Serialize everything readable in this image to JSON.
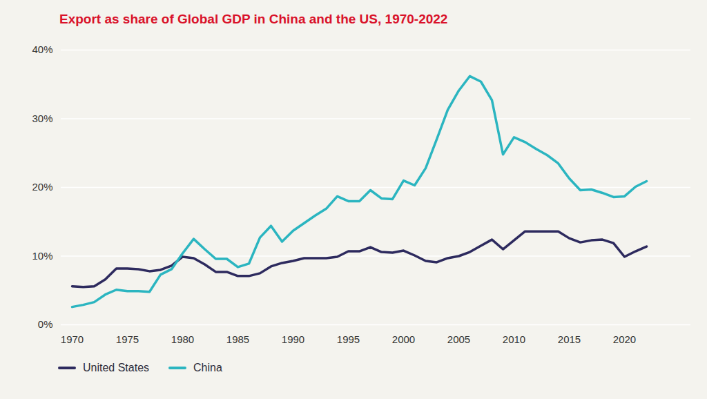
{
  "chart_data": {
    "type": "line",
    "title": "Export as share of Global GDP in China and the US, 1970-2022",
    "x": [
      1970,
      1971,
      1972,
      1973,
      1974,
      1975,
      1976,
      1977,
      1978,
      1979,
      1980,
      1981,
      1982,
      1983,
      1984,
      1985,
      1986,
      1987,
      1988,
      1989,
      1990,
      1991,
      1992,
      1993,
      1994,
      1995,
      1996,
      1997,
      1998,
      1999,
      2000,
      2001,
      2002,
      2003,
      2004,
      2005,
      2006,
      2007,
      2008,
      2009,
      2010,
      2011,
      2012,
      2013,
      2014,
      2015,
      2016,
      2017,
      2018,
      2019,
      2020,
      2021,
      2022
    ],
    "series": [
      {
        "name": "United States",
        "color": "#2d2a5e",
        "values": [
          5.6,
          5.5,
          5.6,
          6.6,
          8.2,
          8.2,
          8.1,
          7.8,
          8.0,
          8.6,
          9.9,
          9.7,
          8.8,
          7.7,
          7.7,
          7.1,
          7.1,
          7.5,
          8.5,
          9.0,
          9.3,
          9.7,
          9.7,
          9.7,
          9.9,
          10.7,
          10.7,
          11.3,
          10.6,
          10.5,
          10.8,
          10.1,
          9.3,
          9.1,
          9.7,
          10.0,
          10.6,
          11.5,
          12.4,
          11.0,
          12.3,
          13.6,
          13.6,
          13.6,
          13.6,
          12.6,
          12.0,
          12.3,
          12.4,
          11.9,
          9.9,
          10.7,
          11.4
        ]
      },
      {
        "name": "China",
        "color": "#2bb5c0",
        "values": [
          2.6,
          2.9,
          3.3,
          4.4,
          5.1,
          4.9,
          4.9,
          4.8,
          7.3,
          8.1,
          10.4,
          12.5,
          11.0,
          9.6,
          9.6,
          8.4,
          8.9,
          12.7,
          14.4,
          12.1,
          13.7,
          14.8,
          15.9,
          16.9,
          18.7,
          18.0,
          18.0,
          19.6,
          18.4,
          18.3,
          21.0,
          20.3,
          22.8,
          27.0,
          31.3,
          34.1,
          36.2,
          35.4,
          32.7,
          24.8,
          27.3,
          26.6,
          25.6,
          24.7,
          23.5,
          21.3,
          19.6,
          19.7,
          19.2,
          18.6,
          18.7,
          20.1,
          20.9
        ]
      }
    ],
    "xlim": [
      1969,
      2026
    ],
    "xticks": [
      1970,
      1975,
      1980,
      1985,
      1990,
      1995,
      2000,
      2005,
      2010,
      2015,
      2020
    ],
    "ylim": [
      0,
      40
    ],
    "yticks": [
      {
        "value": 0,
        "label": "0%"
      },
      {
        "value": 10,
        "label": "10%"
      },
      {
        "value": 20,
        "label": "20%"
      },
      {
        "value": 30,
        "label": "30%"
      },
      {
        "value": 40,
        "label": "40%"
      }
    ],
    "grid": true,
    "legend": "bottom"
  }
}
